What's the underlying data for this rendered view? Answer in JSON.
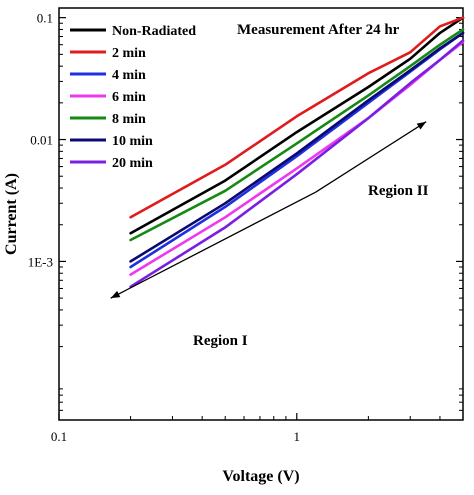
{
  "chart_data": {
    "type": "line",
    "title": "",
    "xlabel": "Voltage (V)",
    "ylabel": "Current (A)",
    "x_scale": "log",
    "y_scale": "log",
    "xlim": [
      0.1,
      5.0
    ],
    "ylim": [
      5e-05,
      0.12
    ],
    "x_ticks": [
      {
        "value": 0.1,
        "label": "0.1"
      },
      {
        "value": 1,
        "label": "1"
      }
    ],
    "y_ticks": [
      {
        "value": 0.001,
        "label": "1E-3"
      },
      {
        "value": 0.01,
        "label": "0.01"
      },
      {
        "value": 0.1,
        "label": "0.1"
      }
    ],
    "grid": false,
    "legend_position": "top-left",
    "series": [
      {
        "name": "Non-Radiated",
        "color": "#000000",
        "x": [
          0.2,
          0.5,
          1,
          2,
          3,
          4,
          5
        ],
        "y": [
          0.0017,
          0.0046,
          0.0115,
          0.027,
          0.046,
          0.075,
          0.1
        ]
      },
      {
        "name": "2 min",
        "color": "#e01b1b",
        "x": [
          0.2,
          0.5,
          1,
          2,
          3,
          4,
          5
        ],
        "y": [
          0.0023,
          0.0062,
          0.0155,
          0.035,
          0.052,
          0.085,
          0.1
        ]
      },
      {
        "name": "4 min",
        "color": "#1f2ee0",
        "x": [
          0.2,
          0.5,
          1,
          2,
          3,
          4,
          5
        ],
        "y": [
          0.0009,
          0.0028,
          0.0073,
          0.02,
          0.036,
          0.055,
          0.075
        ]
      },
      {
        "name": "6 min",
        "color": "#ee38ee",
        "x": [
          0.2,
          0.5,
          1,
          2,
          3,
          4,
          5
        ],
        "y": [
          0.00078,
          0.0023,
          0.0058,
          0.015,
          0.028,
          0.045,
          0.063
        ]
      },
      {
        "name": "8 min",
        "color": "#148a14",
        "x": [
          0.2,
          0.5,
          1,
          2,
          3,
          4,
          5
        ],
        "y": [
          0.0015,
          0.0038,
          0.0093,
          0.023,
          0.04,
          0.06,
          0.08
        ]
      },
      {
        "name": "10 min",
        "color": "#0a0a70",
        "x": [
          0.2,
          0.5,
          1,
          2,
          3,
          4,
          5
        ],
        "y": [
          0.001,
          0.003,
          0.0077,
          0.021,
          0.037,
          0.056,
          0.075
        ]
      },
      {
        "name": "20 min",
        "color": "#7a1fe0",
        "x": [
          0.2,
          0.5,
          1,
          2,
          3,
          4,
          5
        ],
        "y": [
          0.00062,
          0.0019,
          0.0052,
          0.015,
          0.029,
          0.045,
          0.065
        ]
      }
    ],
    "annotations": [
      {
        "text": "Measurement After 24 hr"
      },
      {
        "text": "Region II",
        "arrow_from": [
          1.2,
          0.0037
        ],
        "arrow_to": [
          3.5,
          0.014
        ]
      },
      {
        "text": "Region I",
        "arrow_from": [
          1.2,
          0.0037
        ],
        "arrow_to": [
          0.165,
          0.0005
        ]
      }
    ]
  }
}
